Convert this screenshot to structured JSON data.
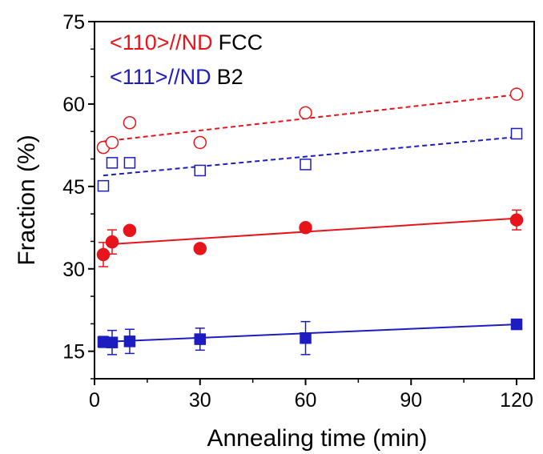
{
  "chart_data": {
    "type": "scatter",
    "xlabel": "Annealing time (min)",
    "ylabel": "Fraction (%)",
    "xlim": [
      0,
      125
    ],
    "ylim": [
      10,
      75
    ],
    "xticks": [
      0,
      30,
      60,
      90,
      120
    ],
    "yticks": [
      15,
      30,
      45,
      60,
      75
    ],
    "legend": {
      "position": "top-left",
      "lines": [
        {
          "orientation": "<110>//ND",
          "orientation_color": "#e8141b",
          "phase": "FCC"
        },
        {
          "orientation": "<111>//ND",
          "orientation_color": "#1c1cc0",
          "phase": "B2"
        }
      ]
    },
    "series": [
      {
        "color": "#e8141b",
        "marker": "circle-open",
        "line": "dashed",
        "x": [
          2.5,
          5,
          10,
          30,
          60,
          120
        ],
        "y": [
          52.1,
          53.0,
          56.6,
          53.0,
          58.4,
          61.8
        ],
        "fit": [
          [
            2.5,
            53.2
          ],
          [
            120,
            61.7
          ]
        ]
      },
      {
        "color": "#1c1cc0",
        "marker": "square-open",
        "line": "dashed",
        "x": [
          2.5,
          5,
          10,
          30,
          60,
          120
        ],
        "y": [
          45.1,
          49.3,
          49.3,
          47.9,
          49.0,
          54.6
        ],
        "fit": [
          [
            2.5,
            47.0
          ],
          [
            120,
            54.0
          ]
        ]
      },
      {
        "color": "#e8141b",
        "marker": "circle-filled",
        "line": "solid",
        "x": [
          2.5,
          5,
          10,
          30,
          60,
          120
        ],
        "y": [
          32.6,
          34.9,
          37.0,
          33.7,
          37.5,
          38.9
        ],
        "err": [
          2.2,
          2.2,
          0,
          0,
          0,
          1.8
        ],
        "fit": [
          [
            5,
            34.5
          ],
          [
            120,
            39.2
          ]
        ]
      },
      {
        "color": "#1c1cc0",
        "marker": "square-filled",
        "line": "solid",
        "x": [
          2.5,
          5,
          10,
          30,
          60,
          120
        ],
        "y": [
          16.7,
          16.6,
          16.8,
          17.2,
          17.4,
          19.9
        ],
        "err": [
          1.0,
          2.2,
          2.2,
          2.0,
          3.0,
          0
        ],
        "fit": [
          [
            2.5,
            16.7
          ],
          [
            120,
            19.9
          ]
        ]
      }
    ]
  }
}
